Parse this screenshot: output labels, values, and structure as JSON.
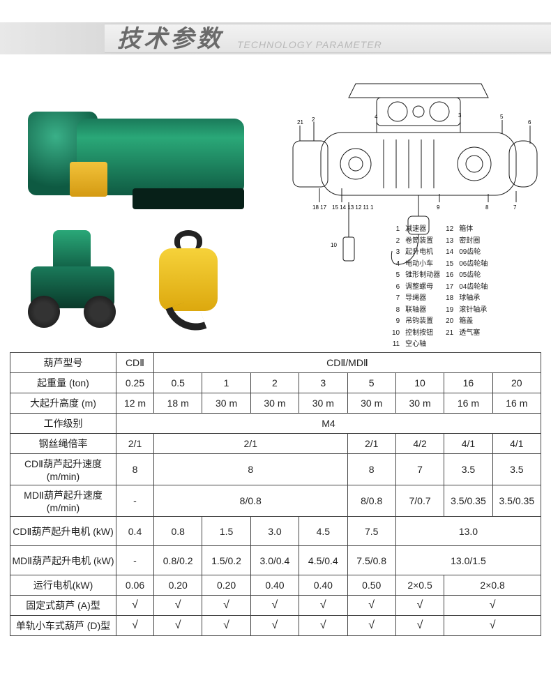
{
  "header": {
    "title_cn": "技术参数",
    "title_en": "TECHNOLOGY PARAMETER"
  },
  "colors": {
    "product_green": "#1a8a62",
    "product_yellow": "#e9b823",
    "table_border": "#444444",
    "header_band": "#dcdcdc",
    "diagram_stroke": "#1a1a1a"
  },
  "diagram_legend": {
    "col1": [
      {
        "n": "1",
        "t": "减速器"
      },
      {
        "n": "2",
        "t": "卷筒装置"
      },
      {
        "n": "3",
        "t": "起升电机"
      },
      {
        "n": "4",
        "t": "电动小车"
      },
      {
        "n": "5",
        "t": "锥形制动器"
      },
      {
        "n": "6",
        "t": "调整螺母"
      },
      {
        "n": "7",
        "t": "导绳器"
      },
      {
        "n": "8",
        "t": "联轴器"
      },
      {
        "n": "9",
        "t": "吊钩装置"
      },
      {
        "n": "10",
        "t": "控制按钮"
      },
      {
        "n": "11",
        "t": "空心轴"
      }
    ],
    "col2": [
      {
        "n": "12",
        "t": "箱体"
      },
      {
        "n": "13",
        "t": "密封圈"
      },
      {
        "n": "14",
        "t": "09齿轮"
      },
      {
        "n": "15",
        "t": "06齿轮轴"
      },
      {
        "n": "16",
        "t": "05齿轮"
      },
      {
        "n": "17",
        "t": "04齿轮轴"
      },
      {
        "n": "18",
        "t": "球轴承"
      },
      {
        "n": "19",
        "t": "滚针轴承"
      },
      {
        "n": "20",
        "t": "箱盖"
      },
      {
        "n": "21",
        "t": "透气塞"
      }
    ]
  },
  "spec_table": {
    "row_labels": {
      "model": "葫芦型号",
      "capacity": "起重量 (ton)",
      "max_height": "大起升高度 (m)",
      "duty": "工作级别",
      "rope_ratio": "钢丝绳倍率",
      "cd_speed": "CDⅡ葫芦起升速度 (m/min)",
      "md_speed": "MDⅡ葫芦起升速度 (m/min)",
      "cd_motor": "CDⅡ葫芦起升电机 (kW)",
      "md_motor": "MDⅡ葫芦起升电机 (kW)",
      "travel_motor": "运行电机(kW)",
      "fixed_type": "固定式葫芦 (A)型",
      "trolley_type": "单轨小车式葫芦 (D)型"
    },
    "header_group": {
      "cd2": "CDⅡ",
      "cdmd": "CDⅡ/MDⅡ"
    },
    "capacities": [
      "0.25",
      "0.5",
      "1",
      "2",
      "3",
      "5",
      "10",
      "16",
      "20"
    ],
    "max_heights": [
      "12 m",
      "18 m",
      "30 m",
      "30 m",
      "30 m",
      "30 m",
      "30 m",
      "16 m",
      "16 m"
    ],
    "duty_value": "M4",
    "rope_ratio": {
      "c1": "2/1",
      "g1": "2/1",
      "c5": "2/1",
      "c10": "4/2",
      "c16": "4/1",
      "c20": "4/1"
    },
    "cd_speed": {
      "c1": "8",
      "g1": "8",
      "c5": "8",
      "c10": "7",
      "c16": "3.5",
      "c20": "3.5"
    },
    "md_speed": {
      "c1": "-",
      "g1": "8/0.8",
      "c5": "8/0.8",
      "c10": "7/0.7",
      "c16": "3.5/0.35",
      "c20": "3.5/0.35"
    },
    "cd_motor": {
      "c1": "0.4",
      "c2": "0.8",
      "c3": "1.5",
      "c4": "3.0",
      "c5": "4.5",
      "c6": "7.5",
      "g2": "13.0"
    },
    "md_motor": {
      "c1": "-",
      "c2": "0.8/0.2",
      "c3": "1.5/0.2",
      "c4": "3.0/0.4",
      "c5": "4.5/0.4",
      "c6": "7.5/0.8",
      "g2": "13.0/1.5"
    },
    "travel_motor": {
      "c1": "0.06",
      "c2": "0.20",
      "c3": "0.20",
      "c4": "0.40",
      "c5": "0.40",
      "c6": "0.50",
      "c7": "2×0.5",
      "g2": "2×0.8"
    },
    "fixed_row": [
      "√",
      "√",
      "√",
      "√",
      "√",
      "√",
      "√",
      "√"
    ],
    "trolley_row": [
      "√",
      "√",
      "√",
      "√",
      "√",
      "√",
      "√",
      "√"
    ],
    "check_mark": "√"
  }
}
